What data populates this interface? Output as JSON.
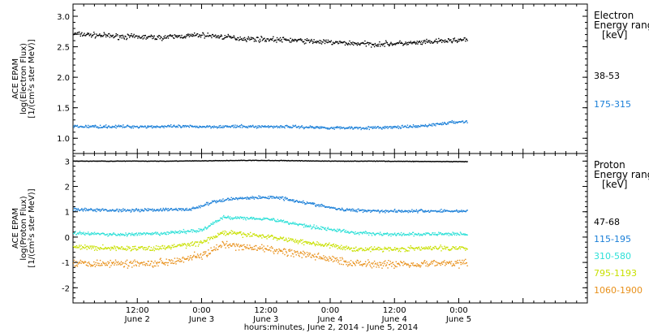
{
  "x_axis": {
    "title": "hours:minutes, June  2, 2014 - June  5, 2014",
    "range_hours": [
      0,
      96
    ],
    "ticks": [
      {
        "hour": 12,
        "time": "12:00",
        "day": "June 2"
      },
      {
        "hour": 24,
        "time": "0:00",
        "day": "June 3"
      },
      {
        "hour": 36,
        "time": "12:00",
        "day": "June 3"
      },
      {
        "hour": 48,
        "time": "0:00",
        "day": "June 4"
      },
      {
        "hour": 60,
        "time": "12:00",
        "day": "June 4"
      },
      {
        "hour": 72,
        "time": "0:00",
        "day": "June 5"
      }
    ]
  },
  "chart_data": [
    {
      "type": "scatter",
      "ylabel": [
        "ACE EPAM",
        "log(Electron Flux)",
        "[1/(cm²s ster MeV)]"
      ],
      "ylim": [
        0.75,
        3.2
      ],
      "yticks": [
        "1.0",
        "1.5",
        "2.0",
        "2.5",
        "3.0"
      ],
      "legend_title": [
        "Electron",
        "Energy range",
        "[keV]"
      ],
      "series": [
        {
          "name": "38-53",
          "color": "#000000",
          "x": [
            0,
            8,
            16,
            24,
            32,
            40,
            48,
            56,
            64,
            72
          ],
          "y": [
            2.72,
            2.68,
            2.66,
            2.7,
            2.64,
            2.62,
            2.58,
            2.55,
            2.57,
            2.62
          ]
        },
        {
          "name": "175-315",
          "color": "#1a7fd8",
          "x": [
            0,
            8,
            16,
            24,
            32,
            40,
            48,
            56,
            64,
            72
          ],
          "y": [
            1.2,
            1.2,
            1.2,
            1.2,
            1.2,
            1.2,
            1.18,
            1.18,
            1.2,
            1.28
          ]
        }
      ]
    },
    {
      "type": "scatter",
      "ylabel": [
        "ACE EPAM",
        "log(Proton Flux)",
        "[1/(cm²s ster MeV)]"
      ],
      "ylim": [
        -2.6,
        3.3
      ],
      "yticks": [
        "-2",
        "-1",
        "0",
        "1",
        "2",
        "3"
      ],
      "legend_title": [
        "Proton",
        "Energy range",
        "[keV]"
      ],
      "series": [
        {
          "name": "47-68",
          "color": "#000000",
          "x": [
            0,
            8,
            16,
            24,
            32,
            40,
            48,
            56,
            64,
            72
          ],
          "y": [
            3.02,
            3.02,
            3.02,
            3.03,
            3.05,
            3.04,
            3.02,
            3.02,
            3.01,
            3.0
          ]
        },
        {
          "name": "115-195",
          "color": "#1a7fd8",
          "x": [
            0,
            8,
            16,
            22,
            26,
            30,
            38,
            44,
            50,
            58,
            66,
            72
          ],
          "y": [
            1.1,
            1.08,
            1.1,
            1.12,
            1.4,
            1.55,
            1.6,
            1.35,
            1.1,
            1.05,
            1.05,
            1.05
          ]
        },
        {
          "name": "310-580",
          "color": "#2ee0d8",
          "x": [
            0,
            8,
            16,
            24,
            28,
            36,
            44,
            52,
            60,
            72
          ],
          "y": [
            0.18,
            0.12,
            0.15,
            0.3,
            0.8,
            0.75,
            0.45,
            0.2,
            0.12,
            0.15
          ]
        },
        {
          "name": "795-1193",
          "color": "#c8e000",
          "x": [
            0,
            8,
            16,
            24,
            28,
            36,
            44,
            52,
            60,
            72
          ],
          "y": [
            -0.38,
            -0.42,
            -0.42,
            -0.2,
            0.2,
            0.05,
            -0.2,
            -0.45,
            -0.45,
            -0.4
          ]
        },
        {
          "name": "1060-1900",
          "color": "#e8901a",
          "x": [
            0,
            8,
            16,
            24,
            28,
            36,
            44,
            52,
            60,
            72
          ],
          "y": [
            -1.0,
            -1.02,
            -1.0,
            -0.7,
            -0.3,
            -0.45,
            -0.7,
            -1.0,
            -1.05,
            -1.0
          ]
        }
      ]
    }
  ]
}
